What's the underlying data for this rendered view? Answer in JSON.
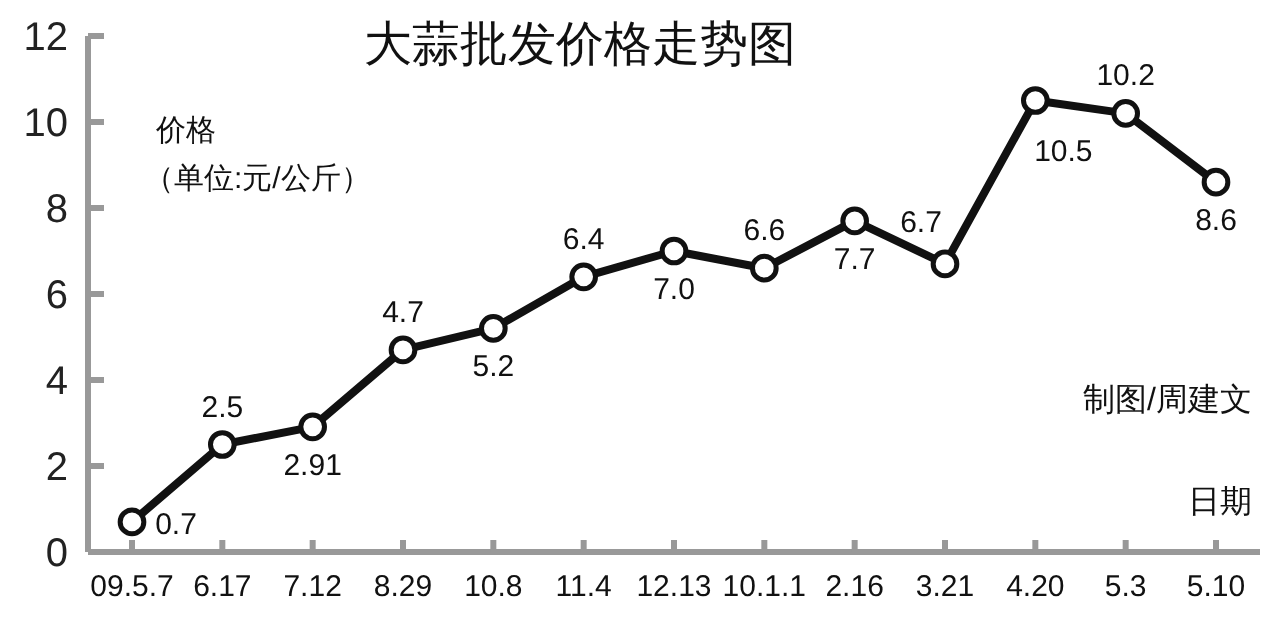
{
  "chart_data": {
    "type": "line",
    "title": "大蒜批发价格走势图",
    "ylabel": "价格",
    "xlabel": "日期",
    "categories": [
      "09.5.7",
      "6.17",
      "7.12",
      "8.29",
      "10.8",
      "11.4",
      "12.13",
      "10.1.1",
      "2.16",
      "3.21",
      "4.20",
      "5.3",
      "5.10"
    ],
    "series": [
      {
        "color": "#111111",
        "values": [
          0.7,
          2.5,
          2.91,
          4.7,
          5.2,
          6.4,
          7.0,
          6.6,
          7.7,
          6.7,
          10.5,
          10.2,
          8.6
        ],
        "value_labels": [
          "0.7",
          "2.5",
          "2.91",
          "4.7",
          "5.2",
          "6.4",
          "7.0",
          "6.6",
          "7.7",
          "6.7",
          "10.5",
          "10.2",
          "8.6"
        ]
      }
    ],
    "ylim": [
      0,
      12
    ],
    "yticks": [
      0,
      2,
      4,
      6,
      8,
      10,
      12
    ],
    "marker": "circle",
    "data_labels": true,
    "grid": false,
    "annotations": [
      "（单位:元/公斤）",
      "制图/周建文"
    ]
  }
}
